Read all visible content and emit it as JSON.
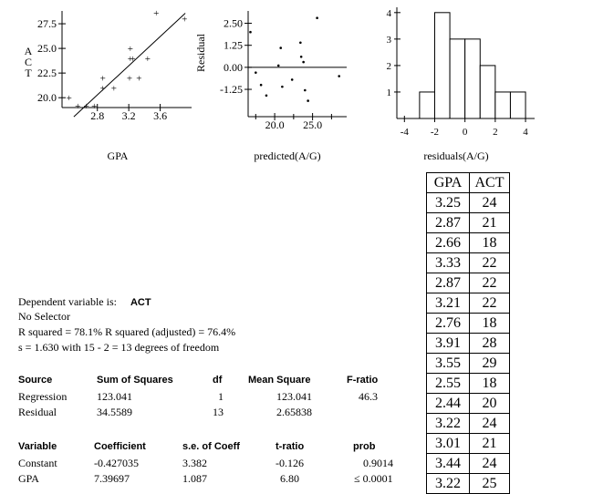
{
  "chart_data": [
    {
      "type": "scatter",
      "name": "act-vs-gpa",
      "xlabel": "GPA",
      "ylabel": "ACT",
      "xlim": [
        2.35,
        4.0
      ],
      "ylim": [
        19.0,
        28.8
      ],
      "xticks": [
        2.8,
        3.2,
        3.6
      ],
      "xtick_labels": [
        "2.8",
        "3.2",
        "3.6"
      ],
      "yticks": [
        20.0,
        22.5,
        25.0,
        27.5
      ],
      "ytick_labels": [
        "20.0",
        "22.5",
        "25.0",
        "27.5"
      ],
      "regression_line": {
        "intercept": -0.427035,
        "slope": 7.39697
      },
      "points": [
        {
          "x": 3.25,
          "y": 24
        },
        {
          "x": 2.87,
          "y": 21
        },
        {
          "x": 2.66,
          "y": 18
        },
        {
          "x": 3.33,
          "y": 22
        },
        {
          "x": 2.87,
          "y": 22
        },
        {
          "x": 3.21,
          "y": 22
        },
        {
          "x": 2.76,
          "y": 18
        },
        {
          "x": 3.91,
          "y": 28
        },
        {
          "x": 3.55,
          "y": 29
        },
        {
          "x": 2.55,
          "y": 18
        },
        {
          "x": 2.44,
          "y": 20
        },
        {
          "x": 3.22,
          "y": 24
        },
        {
          "x": 3.01,
          "y": 21
        },
        {
          "x": 3.44,
          "y": 24
        },
        {
          "x": 3.22,
          "y": 25
        }
      ]
    },
    {
      "type": "scatter",
      "name": "residuals-vs-predicted",
      "xlabel": "predicted(A/G)",
      "ylabel": "Residual",
      "xlim": [
        16.5,
        29.5
      ],
      "ylim": [
        -2.8,
        3.2
      ],
      "xticks": [
        20.0,
        25.0
      ],
      "xtick_labels": [
        "20.0",
        "25.0"
      ],
      "yticks": [
        -1.25,
        0.0,
        1.25,
        2.5
      ],
      "ytick_labels": [
        "-1.25",
        "0.00",
        "1.25",
        "2.50"
      ],
      "zero_line": true,
      "points": [
        {
          "x": 16.8,
          "y": 2.0
        },
        {
          "x": 17.5,
          "y": -0.3
        },
        {
          "x": 18.2,
          "y": -1.0
        },
        {
          "x": 18.9,
          "y": -1.6
        },
        {
          "x": 20.5,
          "y": 0.1
        },
        {
          "x": 20.8,
          "y": 1.1
        },
        {
          "x": 21.0,
          "y": -1.1
        },
        {
          "x": 22.3,
          "y": -0.7
        },
        {
          "x": 23.4,
          "y": 1.4
        },
        {
          "x": 23.5,
          "y": 0.6
        },
        {
          "x": 23.8,
          "y": 0.3
        },
        {
          "x": 24.0,
          "y": -1.3
        },
        {
          "x": 24.4,
          "y": -1.9
        },
        {
          "x": 25.6,
          "y": 2.8
        },
        {
          "x": 28.5,
          "y": -0.5
        }
      ]
    },
    {
      "type": "bar",
      "name": "residual-histogram",
      "xlabel": "residuals(A/G)",
      "ylabel": "",
      "bin_edges": [
        -3,
        -2,
        -1,
        0,
        1,
        2,
        3,
        4
      ],
      "values": [
        1,
        4,
        3,
        3,
        2,
        1,
        1
      ],
      "xlim": [
        -4.5,
        4.6
      ],
      "ylim": [
        0,
        4.2
      ],
      "xticks": [
        -4,
        -2,
        0,
        2,
        4
      ],
      "xtick_labels": [
        "-4",
        "-2",
        "0",
        "2",
        "4"
      ],
      "yticks": [
        1,
        2,
        3,
        4
      ],
      "ytick_labels": [
        "1",
        "2",
        "3",
        "4"
      ]
    },
    {
      "type": "table",
      "name": "data-table",
      "columns": [
        "GPA",
        "ACT"
      ],
      "rows": [
        [
          "3.25",
          "24"
        ],
        [
          "2.87",
          "21"
        ],
        [
          "2.66",
          "18"
        ],
        [
          "3.33",
          "22"
        ],
        [
          "2.87",
          "22"
        ],
        [
          "3.21",
          "22"
        ],
        [
          "2.76",
          "18"
        ],
        [
          "3.91",
          "28"
        ],
        [
          "3.55",
          "29"
        ],
        [
          "2.55",
          "18"
        ],
        [
          "2.44",
          "20"
        ],
        [
          "3.22",
          "24"
        ],
        [
          "3.01",
          "21"
        ],
        [
          "3.44",
          "24"
        ],
        [
          "3.22",
          "25"
        ]
      ]
    }
  ],
  "regression": {
    "dependent_label": "Dependent variable is:",
    "dependent_value": "ACT",
    "selector": "No Selector",
    "r_squared": "R squared = 78.1%     R squared (adjusted) = 76.4%",
    "s_line": "s = 1.630  with  15 - 2 = 13  degrees of freedom",
    "anova_headers": [
      "Source",
      "Sum of Squares",
      "df",
      "Mean Square",
      "F-ratio"
    ],
    "anova_rows": [
      [
        "Regression",
        "123.041",
        "1",
        "123.041",
        "46.3"
      ],
      [
        "Residual",
        "34.5589",
        "13",
        "2.65838",
        ""
      ]
    ],
    "coef_headers": [
      "Variable",
      "Coefficient",
      "s.e. of Coeff",
      "t-ratio",
      "prob"
    ],
    "coef_rows": [
      [
        "Constant",
        "-0.427035",
        "3.382",
        "-0.126",
        "0.9014"
      ],
      [
        "GPA",
        "7.39697",
        "1.087",
        "6.80",
        "≤ 0.0001"
      ]
    ]
  }
}
